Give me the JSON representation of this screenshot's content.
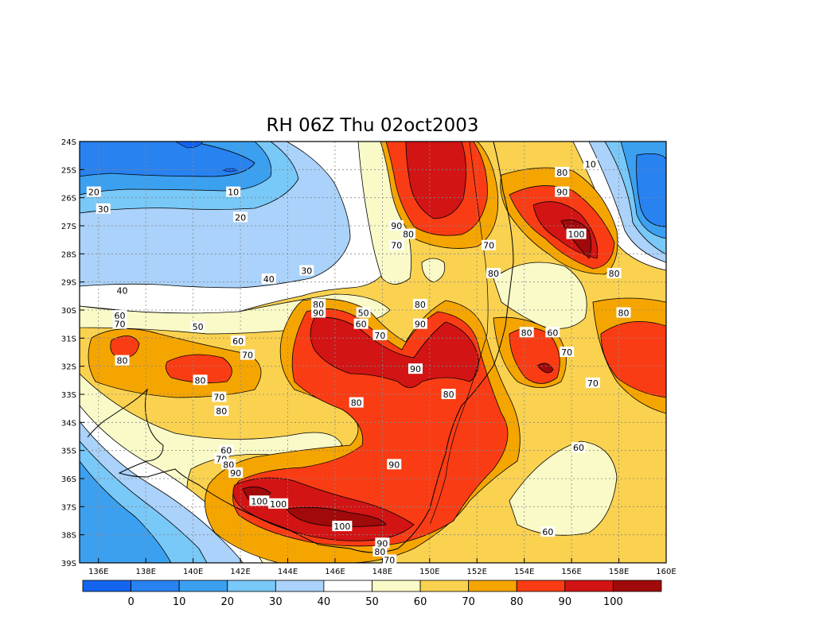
{
  "chart_data": {
    "type": "heatmap",
    "title": "RH 06Z Thu 02oct2003",
    "variable": "RH",
    "x_ticks": [
      "136E",
      "138E",
      "140E",
      "142E",
      "144E",
      "146E",
      "148E",
      "150E",
      "152E",
      "154E",
      "156E",
      "158E",
      "160E"
    ],
    "y_ticks": [
      "24S",
      "25S",
      "26S",
      "27S",
      "28S",
      "29S",
      "30S",
      "31S",
      "32S",
      "33S",
      "34S",
      "35S",
      "36S",
      "37S",
      "38S",
      "39S"
    ],
    "lon_range": [
      135.2,
      160
    ],
    "lat_range": [
      -39,
      -24
    ],
    "grid": true,
    "levels": [
      0,
      10,
      20,
      30,
      40,
      50,
      60,
      70,
      80,
      90,
      100
    ],
    "colorbar_labels": [
      "0",
      "10",
      "20",
      "30",
      "40",
      "50",
      "60",
      "70",
      "80",
      "90",
      "100"
    ],
    "colors": [
      "#1464f0",
      "#2882f0",
      "#3ca0f0",
      "#78c8f8",
      "#aad2fa",
      "#ffffff",
      "#fafac8",
      "#fad250",
      "#f5a500",
      "#fa3c14",
      "#d21414",
      "#a00a0a"
    ],
    "contour_labels": [
      {
        "text": "10",
        "lon": 156.8,
        "lat": -24.8
      },
      {
        "text": "10",
        "lon": 141.7,
        "lat": -25.8
      },
      {
        "text": "20",
        "lon": 135.8,
        "lat": -25.8
      },
      {
        "text": "20",
        "lon": 142.0,
        "lat": -26.7
      },
      {
        "text": "30",
        "lon": 136.2,
        "lat": -26.4
      },
      {
        "text": "30",
        "lon": 144.8,
        "lat": -28.6
      },
      {
        "text": "40",
        "lon": 143.2,
        "lat": -28.9
      },
      {
        "text": "40",
        "lon": 137.0,
        "lat": -29.3
      },
      {
        "text": "50",
        "lon": 140.2,
        "lat": -30.6
      },
      {
        "text": "50",
        "lon": 147.2,
        "lat": -30.1
      },
      {
        "text": "60",
        "lon": 147.1,
        "lat": -30.5
      },
      {
        "text": "60",
        "lon": 136.9,
        "lat": -30.2
      },
      {
        "text": "60",
        "lon": 141.9,
        "lat": -31.1
      },
      {
        "text": "60",
        "lon": 155.2,
        "lat": -30.8
      },
      {
        "text": "60",
        "lon": 156.3,
        "lat": -34.9
      },
      {
        "text": "60",
        "lon": 141.4,
        "lat": -35.0
      },
      {
        "text": "60",
        "lon": 155.0,
        "lat": -37.9
      },
      {
        "text": "70",
        "lon": 136.9,
        "lat": -30.5
      },
      {
        "text": "70",
        "lon": 142.3,
        "lat": -31.6
      },
      {
        "text": "70",
        "lon": 147.9,
        "lat": -30.9
      },
      {
        "text": "70",
        "lon": 141.1,
        "lat": -33.1
      },
      {
        "text": "70",
        "lon": 141.2,
        "lat": -35.3
      },
      {
        "text": "70",
        "lon": 155.8,
        "lat": -31.5
      },
      {
        "text": "70",
        "lon": 156.9,
        "lat": -32.6
      },
      {
        "text": "70",
        "lon": 152.5,
        "lat": -27.7
      },
      {
        "text": "70",
        "lon": 148.6,
        "lat": -27.7
      },
      {
        "text": "70",
        "lon": 148.3,
        "lat": -38.9
      },
      {
        "text": "80",
        "lon": 137.0,
        "lat": -31.8
      },
      {
        "text": "80",
        "lon": 140.3,
        "lat": -32.5
      },
      {
        "text": "80",
        "lon": 141.2,
        "lat": -33.6
      },
      {
        "text": "80",
        "lon": 141.5,
        "lat": -35.5
      },
      {
        "text": "80",
        "lon": 145.3,
        "lat": -29.8
      },
      {
        "text": "80",
        "lon": 146.9,
        "lat": -33.3
      },
      {
        "text": "80",
        "lon": 149.1,
        "lat": -27.3
      },
      {
        "text": "80",
        "lon": 149.6,
        "lat": -29.8
      },
      {
        "text": "80",
        "lon": 150.8,
        "lat": -33.0
      },
      {
        "text": "80",
        "lon": 152.7,
        "lat": -28.7
      },
      {
        "text": "80",
        "lon": 154.1,
        "lat": -30.8
      },
      {
        "text": "80",
        "lon": 155.6,
        "lat": -25.1
      },
      {
        "text": "80",
        "lon": 157.8,
        "lat": -28.7
      },
      {
        "text": "80",
        "lon": 158.2,
        "lat": -30.1
      },
      {
        "text": "80",
        "lon": 147.9,
        "lat": -38.6
      },
      {
        "text": "90",
        "lon": 141.8,
        "lat": -35.8
      },
      {
        "text": "90",
        "lon": 145.3,
        "lat": -30.1
      },
      {
        "text": "90",
        "lon": 148.6,
        "lat": -27.0
      },
      {
        "text": "90",
        "lon": 149.6,
        "lat": -30.5
      },
      {
        "text": "90",
        "lon": 149.4,
        "lat": -32.1
      },
      {
        "text": "90",
        "lon": 148.5,
        "lat": -35.5
      },
      {
        "text": "90",
        "lon": 155.6,
        "lat": -25.8
      },
      {
        "text": "90",
        "lon": 148.0,
        "lat": -38.3
      },
      {
        "text": "100",
        "lon": 142.8,
        "lat": -36.8
      },
      {
        "text": "100",
        "lon": 143.6,
        "lat": -36.9
      },
      {
        "text": "100",
        "lon": 146.3,
        "lat": -37.7
      },
      {
        "text": "100",
        "lon": 156.2,
        "lat": -27.3
      }
    ]
  }
}
